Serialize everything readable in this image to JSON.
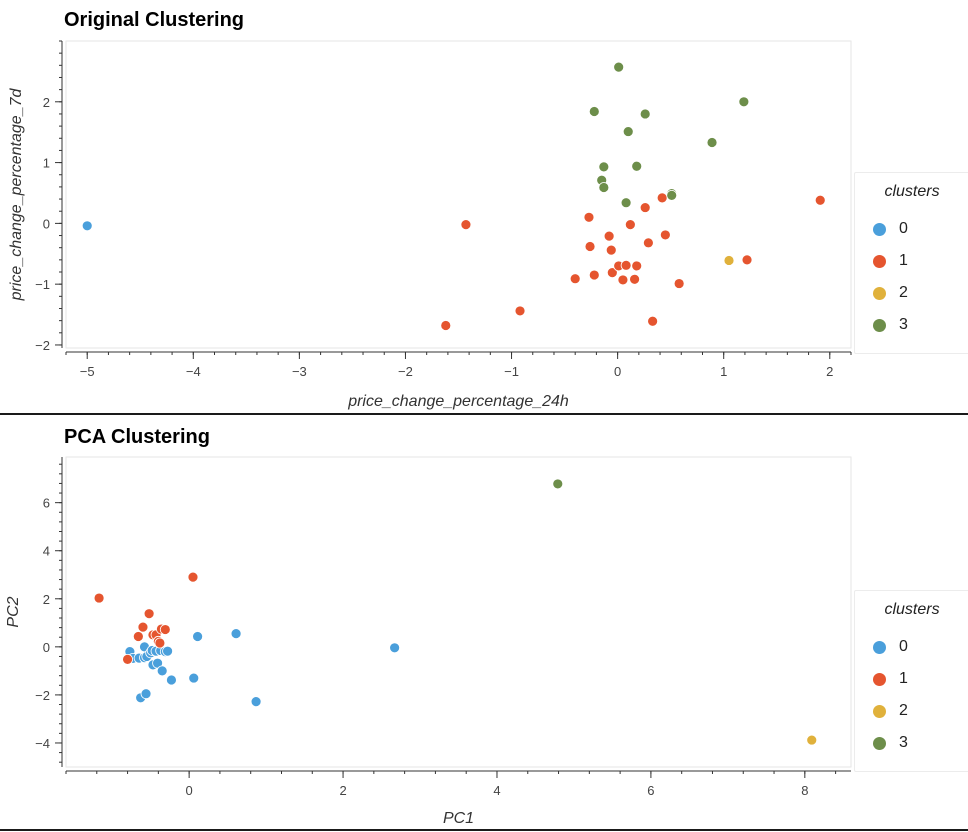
{
  "colors": {
    "cluster_0": "#4a9fdb",
    "cluster_1": "#e5552f",
    "cluster_2": "#e0b13b",
    "cluster_3": "#6d8e4a"
  },
  "chart_data": [
    {
      "type": "scatter",
      "title": "Original Clustering",
      "xlabel": "price_change_percentage_24h",
      "ylabel": "price_change_percentage_7d",
      "xlim": [
        -5.2,
        2.2
      ],
      "ylim": [
        -2.05,
        3.0
      ],
      "x_ticks": [
        -5,
        -4,
        -3,
        -2,
        -1,
        0,
        1,
        2
      ],
      "y_ticks": [
        -2,
        -1,
        0,
        1,
        2
      ],
      "grid": false,
      "legend": {
        "title": "clusters",
        "position": "right",
        "entries": [
          "0",
          "1",
          "2",
          "3"
        ]
      },
      "series": [
        {
          "name": "0",
          "points": [
            [
              -5.0,
              -0.04
            ]
          ]
        },
        {
          "name": "1",
          "points": [
            [
              -1.62,
              -1.68
            ],
            [
              -1.43,
              -0.02
            ],
            [
              -0.92,
              -1.44
            ],
            [
              -0.4,
              -0.91
            ],
            [
              -0.27,
              0.1
            ],
            [
              -0.26,
              -0.38
            ],
            [
              -0.22,
              -0.85
            ],
            [
              -0.08,
              -0.21
            ],
            [
              -0.06,
              -0.44
            ],
            [
              -0.05,
              -0.81
            ],
            [
              0.01,
              -0.7
            ],
            [
              0.05,
              -0.93
            ],
            [
              0.08,
              -0.69
            ],
            [
              0.12,
              -0.02
            ],
            [
              0.16,
              -0.92
            ],
            [
              0.18,
              -0.7
            ],
            [
              0.26,
              0.26
            ],
            [
              0.29,
              -0.32
            ],
            [
              0.33,
              -1.61
            ],
            [
              0.42,
              0.42
            ],
            [
              0.45,
              -0.19
            ],
            [
              0.58,
              -0.99
            ],
            [
              1.22,
              -0.6
            ],
            [
              1.91,
              0.38
            ]
          ]
        },
        {
          "name": "2",
          "points": [
            [
              1.05,
              -0.61
            ]
          ]
        },
        {
          "name": "3",
          "points": [
            [
              -0.22,
              1.84
            ],
            [
              -0.15,
              0.71
            ],
            [
              -0.13,
              0.93
            ],
            [
              -0.13,
              0.59
            ],
            [
              0.01,
              2.57
            ],
            [
              0.08,
              0.34
            ],
            [
              0.1,
              1.51
            ],
            [
              0.18,
              0.94
            ],
            [
              0.26,
              1.8
            ],
            [
              0.51,
              0.49
            ],
            [
              0.51,
              0.46
            ],
            [
              0.89,
              1.33
            ],
            [
              1.19,
              2.0
            ]
          ]
        }
      ]
    },
    {
      "type": "scatter",
      "title": "PCA Clustering",
      "xlabel": "PC1",
      "ylabel": "PC2",
      "xlim": [
        -1.6,
        8.6
      ],
      "ylim": [
        -5.0,
        7.9
      ],
      "x_ticks": [
        0,
        2,
        4,
        6,
        8
      ],
      "y_ticks": [
        -4,
        -2,
        0,
        2,
        4,
        6
      ],
      "grid": false,
      "legend": {
        "title": "clusters",
        "position": "right",
        "entries": [
          "0",
          "1",
          "2",
          "3"
        ]
      },
      "series": [
        {
          "name": "0",
          "points": [
            [
              -0.77,
              -0.2
            ],
            [
              -0.73,
              -0.48
            ],
            [
              -0.65,
              -0.47
            ],
            [
              -0.58,
              -0.45
            ],
            [
              -0.58,
              0.0
            ],
            [
              -0.55,
              -0.4
            ],
            [
              -0.5,
              -0.25
            ],
            [
              -0.48,
              -0.15
            ],
            [
              -0.47,
              -0.75
            ],
            [
              -0.43,
              -0.18
            ],
            [
              -0.41,
              -0.68
            ],
            [
              -0.37,
              -0.15
            ],
            [
              -0.35,
              -1.0
            ],
            [
              -0.31,
              -0.2
            ],
            [
              -0.28,
              -0.18
            ],
            [
              -0.23,
              -1.38
            ],
            [
              -0.63,
              -2.12
            ],
            [
              -0.56,
              -1.95
            ],
            [
              0.06,
              -1.3
            ],
            [
              0.11,
              0.43
            ],
            [
              0.61,
              0.55
            ],
            [
              0.87,
              -2.28
            ],
            [
              2.67,
              -0.04
            ]
          ]
        },
        {
          "name": "1",
          "points": [
            [
              -1.17,
              2.03
            ],
            [
              -0.8,
              -0.52
            ],
            [
              -0.66,
              0.43
            ],
            [
              -0.6,
              0.82
            ],
            [
              -0.52,
              1.38
            ],
            [
              -0.47,
              0.5
            ],
            [
              -0.43,
              0.5
            ],
            [
              -0.4,
              0.23
            ],
            [
              -0.38,
              0.16
            ],
            [
              -0.36,
              0.74
            ],
            [
              -0.31,
              0.72
            ],
            [
              0.05,
              2.9
            ]
          ]
        },
        {
          "name": "2",
          "points": [
            [
              8.09,
              -3.88
            ]
          ]
        },
        {
          "name": "3",
          "points": [
            [
              4.79,
              6.78
            ]
          ]
        }
      ]
    }
  ]
}
